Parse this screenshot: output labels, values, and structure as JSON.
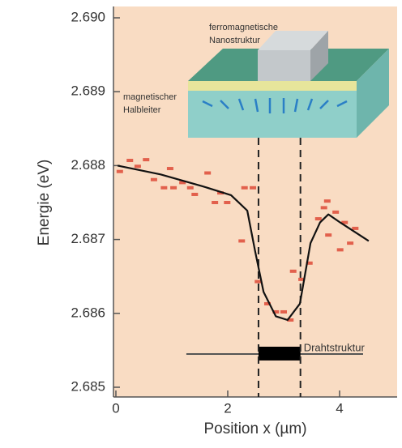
{
  "chart_data": {
    "type": "scatter",
    "xlabel": "Position x (µm)",
    "ylabel": "Energie (eV)",
    "xlim": [
      0,
      5
    ],
    "ylim": [
      2.685,
      2.69
    ],
    "xticks": [
      0,
      2,
      4
    ],
    "yticks": [
      2.685,
      2.686,
      2.687,
      2.688,
      2.689,
      {
        "value": 2.69,
        "label": "2.690"
      }
    ],
    "points": {
      "color": "#e2604c",
      "x": [
        0.07,
        0.25,
        0.39,
        0.54,
        0.68,
        0.86,
        0.97,
        1.03,
        1.19,
        1.33,
        1.41,
        1.64,
        1.77,
        1.87,
        1.99,
        2.25,
        2.3,
        2.45,
        2.54,
        2.71,
        2.86,
        3.0,
        3.12,
        3.17,
        3.32,
        3.46,
        3.62,
        3.72,
        3.78,
        3.8,
        3.93,
        4.01,
        4.09,
        4.19,
        4.28
      ],
      "y": [
        2.68792,
        2.68807,
        2.68799,
        2.68808,
        2.68781,
        2.6877,
        2.68796,
        2.6877,
        2.68777,
        2.6877,
        2.68761,
        2.6879,
        2.6875,
        2.68763,
        2.6875,
        2.68698,
        2.6877,
        2.6877,
        2.68643,
        2.68613,
        2.68602,
        2.68602,
        2.68591,
        2.68657,
        2.68646,
        2.68668,
        2.68728,
        2.68743,
        2.68752,
        2.68706,
        2.68737,
        2.68686,
        2.68723,
        2.68695,
        2.68715
      ]
    },
    "curve": {
      "color": "#111111",
      "x": [
        0.03,
        0.8,
        1.55,
        2.06,
        2.35,
        2.49,
        2.64,
        2.86,
        3.07,
        3.29,
        3.48,
        3.65,
        3.8,
        4.01,
        4.52
      ],
      "y": [
        2.688,
        2.68788,
        2.68772,
        2.6876,
        2.68739,
        2.68684,
        2.68629,
        2.68596,
        2.68591,
        2.68613,
        2.68695,
        2.68723,
        2.68734,
        2.68723,
        2.68698
      ]
    },
    "vlines": [
      2.55,
      3.3
    ],
    "structure": {
      "label": "Drahtstruktur",
      "line": [
        1.26,
        4.42
      ],
      "wire": [
        2.55,
        3.3
      ],
      "y": 2.68545
    },
    "inset": {
      "top_label": [
        "ferromagnetische",
        "Nanostruktur"
      ],
      "side_label": [
        "magnetischer",
        "Halbleiter"
      ]
    }
  }
}
